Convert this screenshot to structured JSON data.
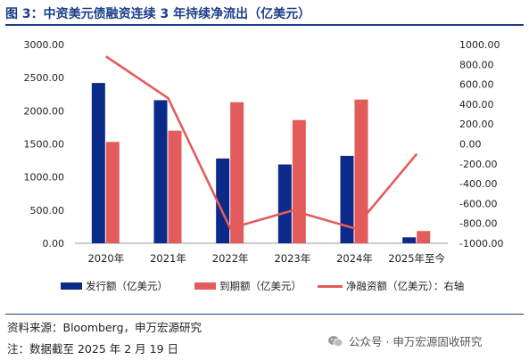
{
  "header": {
    "title": "图 3：中资美元债融资连续 3 年持续净流出（亿美元）"
  },
  "chart_data": {
    "type": "bar",
    "categories": [
      "2020年",
      "2021年",
      "2022年",
      "2023年",
      "2024年",
      "2025年至今"
    ],
    "series": [
      {
        "name": "发行额（亿美元）",
        "kind": "bar",
        "axis": "left",
        "color": "#0c2a8a",
        "values": [
          2420,
          2160,
          1280,
          1190,
          1320,
          90
        ]
      },
      {
        "name": "到期额（亿美元）",
        "kind": "bar",
        "axis": "left",
        "color": "#e45b5b",
        "values": [
          1530,
          1700,
          2130,
          1860,
          2170,
          185
        ]
      },
      {
        "name": "净融资额（亿美元）：右轴",
        "kind": "line",
        "axis": "right",
        "color": "#e45b5b",
        "values": [
          880,
          460,
          -850,
          -670,
          -850,
          -100
        ]
      }
    ],
    "y_left": {
      "min": 0,
      "max": 3000,
      "ticks": [
        "0.00",
        "500.00",
        "1000.00",
        "1500.00",
        "2000.00",
        "2500.00",
        "3000.00"
      ]
    },
    "y_right": {
      "min": -1000,
      "max": 1000,
      "ticks": [
        "-1000.00",
        "-800.00",
        "-600.00",
        "-400.00",
        "-200.00",
        "0.00",
        "200.00",
        "400.00",
        "600.00",
        "800.00",
        "1000.00"
      ]
    },
    "legend_position": "bottom",
    "grid": false
  },
  "footer": {
    "source": "资料来源：Bloomberg，申万宏源研究",
    "note": "注：数据截至 2025 年 2 月 19 日",
    "watermark": "公众号 · 申万宏源固收研究"
  }
}
